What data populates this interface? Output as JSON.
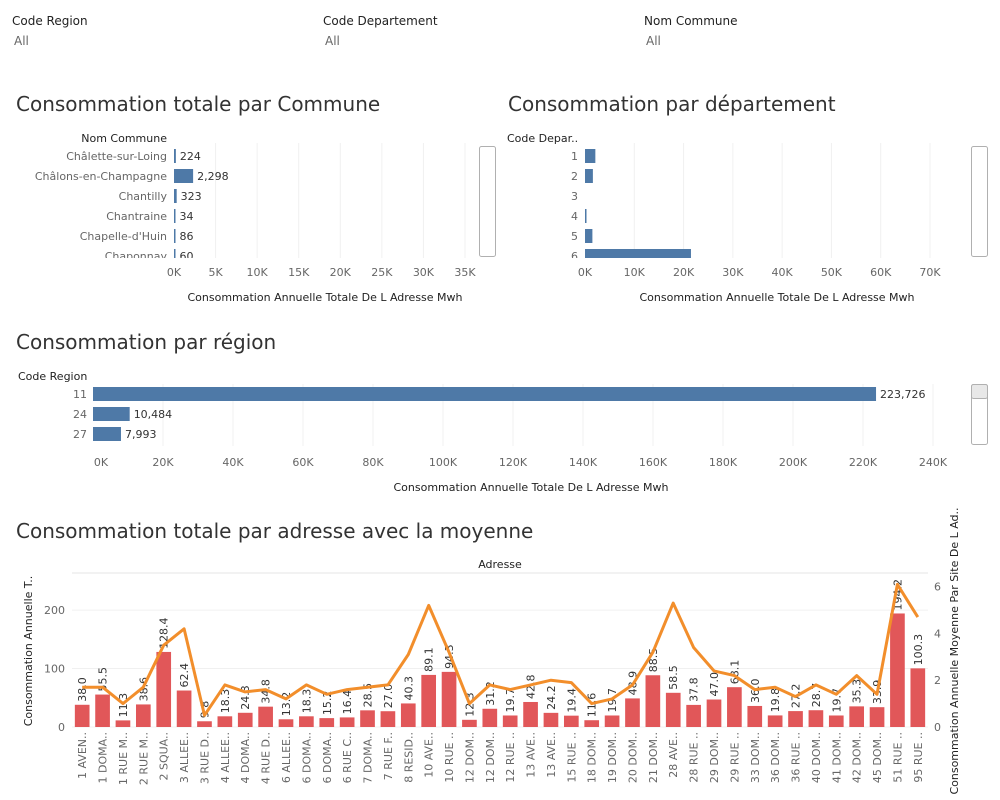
{
  "filters": [
    {
      "label": "Code Region",
      "value": "All"
    },
    {
      "label": "Code Departement",
      "value": "All"
    },
    {
      "label": "Nom Commune",
      "value": "All"
    }
  ],
  "colors": {
    "bar": "#4e79a7",
    "red_bar": "#e15759",
    "line": "#f28e2b"
  },
  "chart_data": [
    {
      "type": "bar",
      "title": "Consommation totale par Commune",
      "category_header": "Nom Commune",
      "categories": [
        "Châlette-sur-Loing",
        "Châlons-en-Champagne",
        "Chantilly",
        "Chantraine",
        "Chapelle-d'Huin",
        "Chaponnay"
      ],
      "values": [
        224,
        2298,
        323,
        34,
        86,
        60
      ],
      "data_labels": [
        "224",
        "2,298",
        "323",
        "34",
        "86",
        "60"
      ],
      "xlabel": "Consommation Annuelle Totale De L Adresse Mwh",
      "xticks": [
        "0K",
        "5K",
        "10K",
        "15K",
        "20K",
        "25K",
        "30K",
        "35K"
      ],
      "xlim": [
        0,
        35000
      ]
    },
    {
      "type": "bar",
      "title": "Consommation par département",
      "category_header": "Code Depar..",
      "categories": [
        "1",
        "2",
        "3",
        "4",
        "5",
        "6"
      ],
      "values": [
        2100,
        1600,
        0,
        200,
        1500,
        21500
      ],
      "xlabel": "Consommation Annuelle Totale De L Adresse Mwh",
      "xticks": [
        "0K",
        "10K",
        "20K",
        "30K",
        "40K",
        "50K",
        "60K",
        "70K"
      ],
      "xlim": [
        0,
        70000
      ]
    },
    {
      "type": "bar",
      "title": "Consommation par région",
      "category_header": "Code Region",
      "categories": [
        "11",
        "24",
        "27"
      ],
      "values": [
        223726,
        10484,
        7993
      ],
      "data_labels": [
        "223,726",
        "10,484",
        "7,993"
      ],
      "xlabel": "Consommation Annuelle Totale De L Adresse Mwh",
      "xticks": [
        "0K",
        "20K",
        "40K",
        "60K",
        "80K",
        "100K",
        "120K",
        "140K",
        "160K",
        "180K",
        "200K",
        "220K",
        "240K"
      ],
      "xlim": [
        0,
        240000
      ]
    },
    {
      "type": "bar",
      "title": "Consommation totale par adresse avec la moyenne",
      "xlabel": "Adresse",
      "ylabel": "Consommation Annuelle T..",
      "y2label": "Consommation Annuelle Moyenne Par Site De L Ad..",
      "yticks": [
        "0",
        "100",
        "200"
      ],
      "ylim": [
        0,
        260
      ],
      "y2ticks": [
        "0",
        "2",
        "4",
        "6"
      ],
      "y2lim": [
        0,
        6.5
      ],
      "categories": [
        "1 AVEN..",
        "1 DOMA..",
        "1 RUE M..",
        "2 RUE M..",
        "2 SQUA..",
        "3 ALLEE..",
        "3 RUE D..",
        "4 ALLEE..",
        "4 DOMA..",
        "4 RUE D..",
        "6 ALLEE..",
        "6 DOMA..",
        "6 DOMA..",
        "6 RUE C..",
        "7 DOMA..",
        "7 RUE F..",
        "8 RESID..",
        "10 AVE..",
        "10 RUE ..",
        "12 DOM..",
        "12 DOM..",
        "12 RUE ..",
        "13 AVE..",
        "13 AVE..",
        "15 RUE ..",
        "18 DOM..",
        "19 DOM..",
        "20 DOM..",
        "21 DOM..",
        "28 AVE..",
        "28 RUE ..",
        "29 DOM..",
        "29 RUE ..",
        "33 DOM..",
        "36 DOM..",
        "36 RUE ..",
        "40 DOM..",
        "41 DOM..",
        "42 DOM..",
        "45 DOM..",
        "51 RUE ..",
        "95 RUE .."
      ],
      "series": [
        {
          "values": [
            38.0,
            55.5,
            11.3,
            38.6,
            128.4,
            62.4,
            9.8,
            18.3,
            24.3,
            34.8,
            13.2,
            18.3,
            15.2,
            16.4,
            28.5,
            27.0,
            40.3,
            89.1,
            94.3,
            12.3,
            31.2,
            19.7,
            42.8,
            24.2,
            19.4,
            11.6,
            19.7,
            48.9,
            88.5,
            58.5,
            37.8,
            47.0,
            68.1,
            36.0,
            19.8,
            27.2,
            28.7,
            19.7,
            35.3,
            33.9,
            194.2,
            100.3
          ],
          "data_labels": [
            "38.0",
            "55.5",
            "11.3",
            "38.6",
            "128.4",
            "62.4",
            "9.8",
            "18.3",
            "24.3",
            "34.8",
            "13.2",
            "18.3",
            "15.2",
            "16.4",
            "28.5",
            "27.0",
            "40.3",
            "89.1",
            "94.3",
            "12.3",
            "31.2",
            "19.7",
            "42.8",
            "24.2",
            "19.4",
            "11.6",
            "19.7",
            "48.9",
            "88.5",
            "58.5",
            "37.8",
            "47.0",
            "68.1",
            "36.0",
            "19.8",
            "27.2",
            "28.7",
            "19.7",
            "35.3",
            "33.9",
            "194.2",
            "100.3"
          ]
        },
        {
          "type": "line",
          "axis": "right",
          "values": [
            1.7,
            1.7,
            1.0,
            1.7,
            3.5,
            4.2,
            0.5,
            1.8,
            1.5,
            1.6,
            1.2,
            1.8,
            1.4,
            1.6,
            1.7,
            1.8,
            3.1,
            5.2,
            3.2,
            1.0,
            1.8,
            1.6,
            1.8,
            2.0,
            1.9,
            1.0,
            1.2,
            1.8,
            3.2,
            5.3,
            3.4,
            2.4,
            2.2,
            1.6,
            1.7,
            1.3,
            1.8,
            1.4,
            2.2,
            1.4,
            6.1,
            4.7
          ]
        }
      ]
    }
  ]
}
